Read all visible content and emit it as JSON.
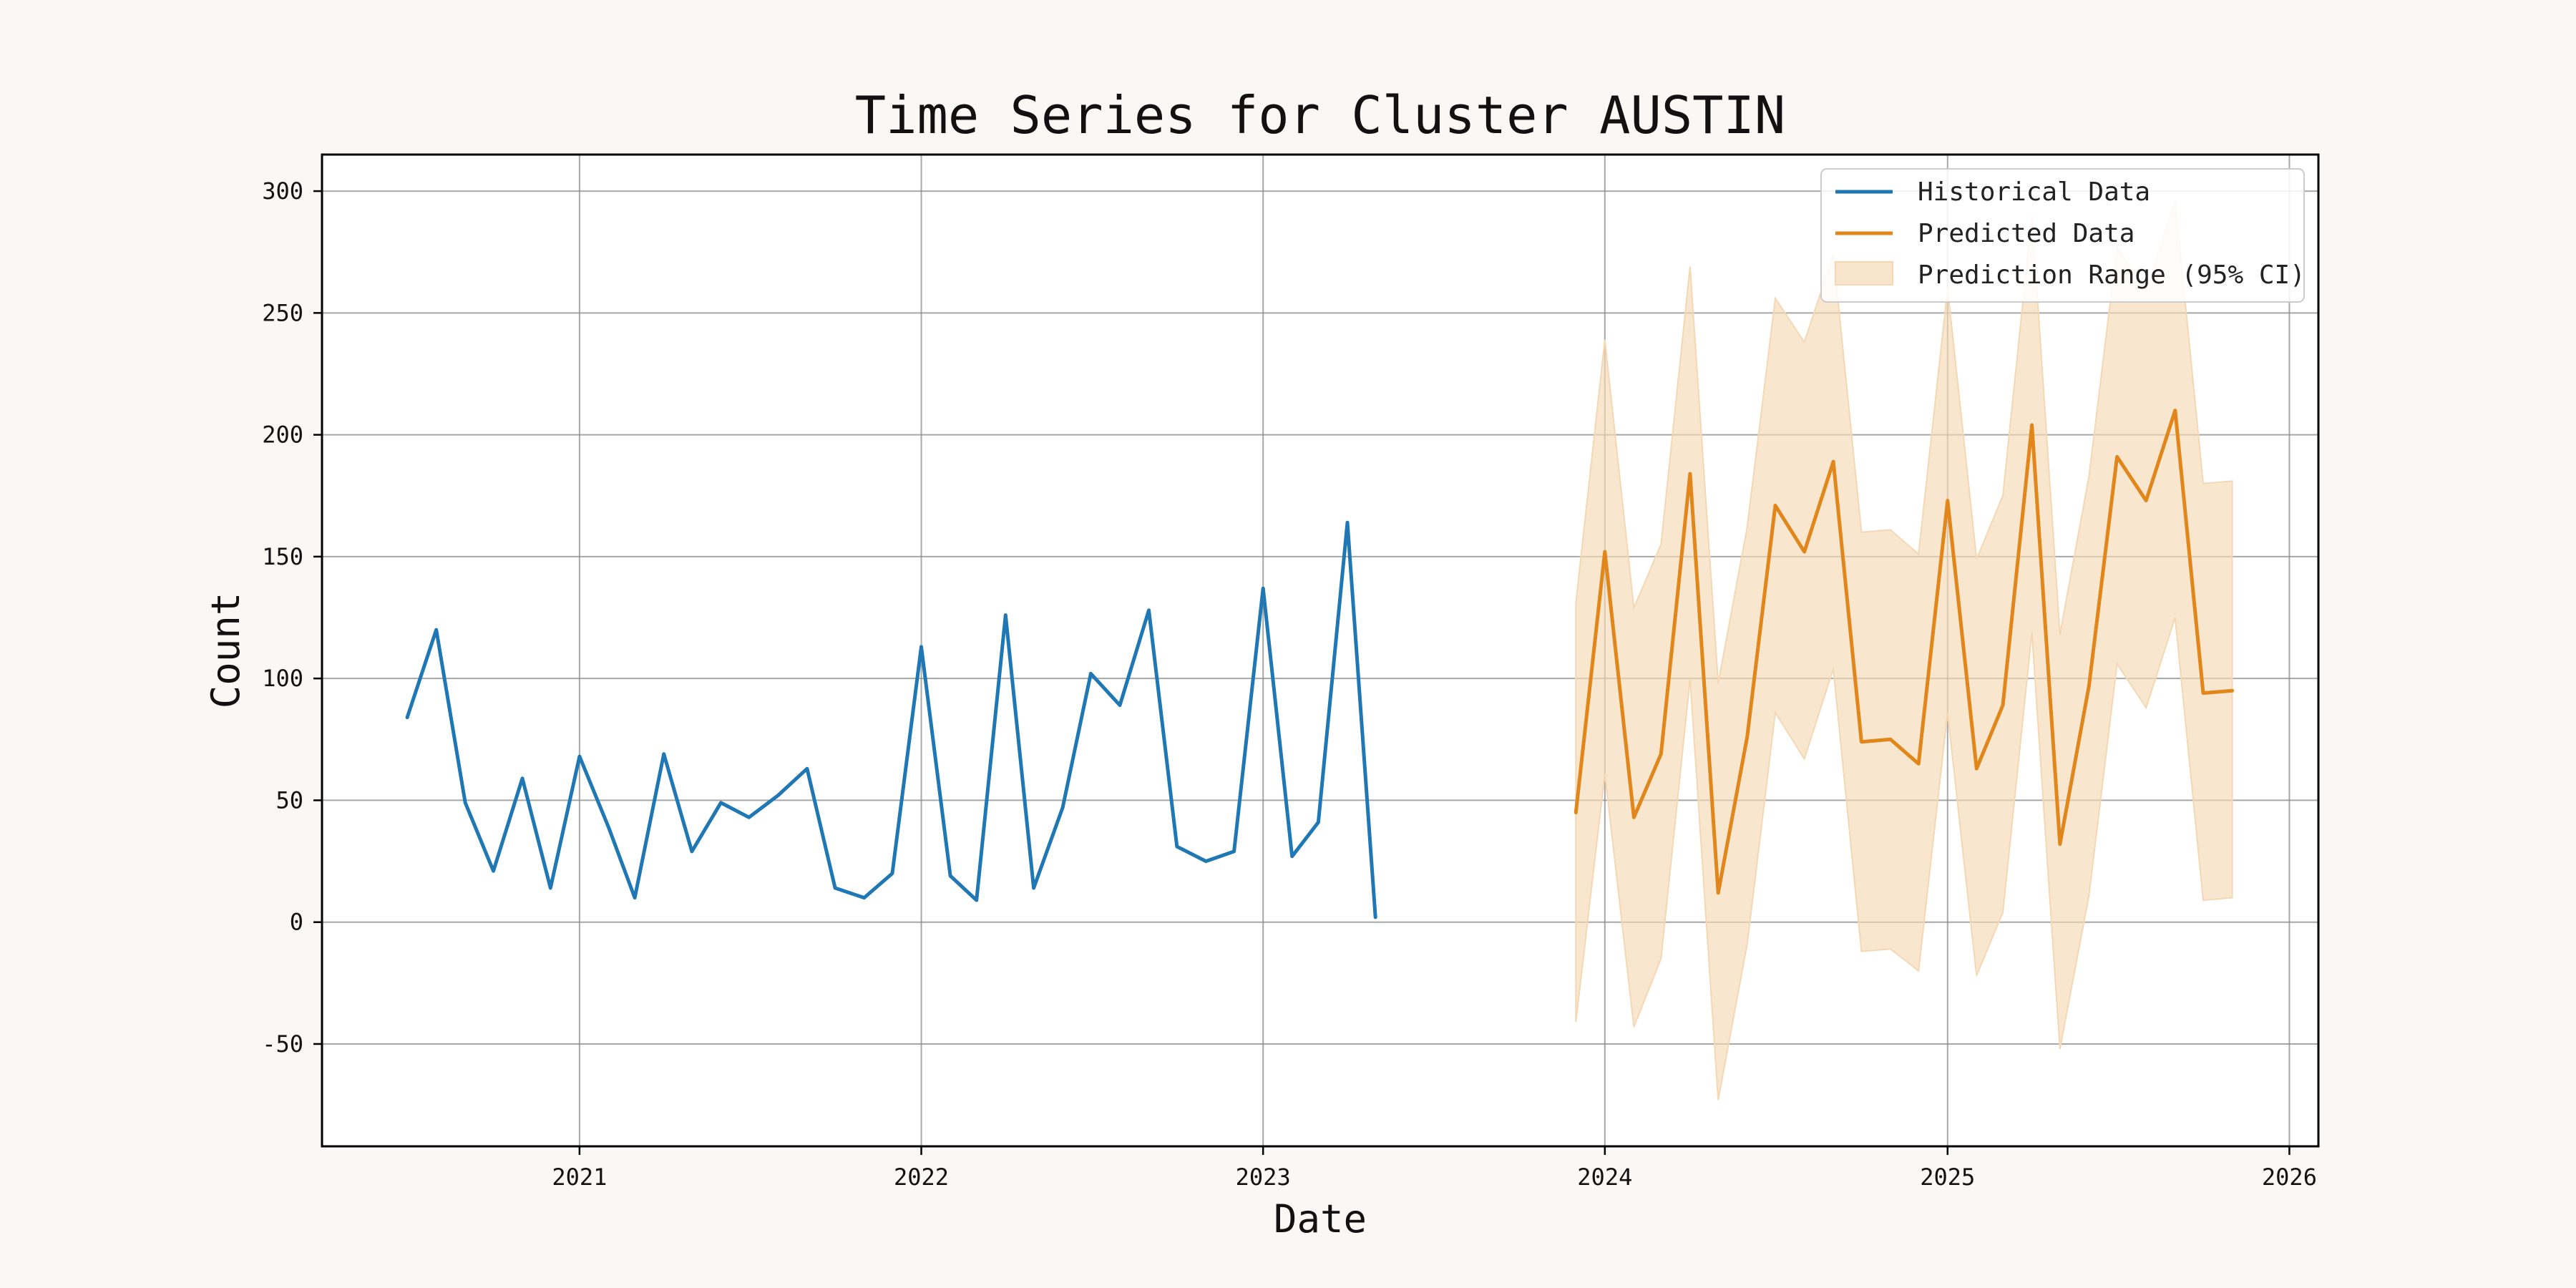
{
  "chart_data": {
    "type": "line",
    "title": "Time Series for Cluster AUSTIN",
    "xlabel": "Date",
    "ylabel": "Count",
    "xlim": [
      "2020-04-01",
      "2026-02-01"
    ],
    "ylim": [
      -92,
      315
    ],
    "x_ticks": [
      "2021-01-01",
      "2022-01-01",
      "2023-01-01",
      "2024-01-01",
      "2025-01-01",
      "2026-01-01"
    ],
    "x_tick_labels": [
      "2021",
      "2022",
      "2023",
      "2024",
      "2025",
      "2026"
    ],
    "y_ticks": [
      -50,
      0,
      50,
      100,
      150,
      200,
      250,
      300
    ],
    "grid": true,
    "legend_position": "top-right",
    "colors": {
      "historical": "#1f77b4",
      "predicted": "#e0861a",
      "band": "#f5d8b3",
      "grid": "#8a8a8a",
      "frame": "#000000"
    },
    "series": [
      {
        "name": "Historical Data",
        "x": [
          "2020-07-01",
          "2020-08-01",
          "2020-09-01",
          "2020-10-01",
          "2020-11-01",
          "2020-12-01",
          "2021-01-01",
          "2021-02-01",
          "2021-03-01",
          "2021-04-01",
          "2021-05-01",
          "2021-06-01",
          "2021-07-01",
          "2021-08-01",
          "2021-09-01",
          "2021-10-01",
          "2021-11-01",
          "2021-12-01",
          "2022-01-01",
          "2022-02-01",
          "2022-03-01",
          "2022-04-01",
          "2022-05-01",
          "2022-06-01",
          "2022-07-01",
          "2022-08-01",
          "2022-09-01",
          "2022-10-01",
          "2022-11-01",
          "2022-12-01",
          "2023-01-01",
          "2023-02-01",
          "2023-03-01",
          "2023-04-01",
          "2023-05-01"
        ],
        "values": [
          84,
          120,
          49,
          21,
          59,
          14,
          68,
          39,
          10,
          69,
          29,
          49,
          43,
          52,
          63,
          14,
          10,
          20,
          113,
          19,
          9,
          126,
          14,
          47,
          102,
          89,
          128,
          31,
          25,
          29,
          137,
          27,
          41,
          164,
          2
        ]
      },
      {
        "name": "Predicted Data",
        "x": [
          "2023-12-01",
          "2024-01-01",
          "2024-02-01",
          "2024-03-01",
          "2024-04-01",
          "2024-05-01",
          "2024-06-01",
          "2024-07-01",
          "2024-08-01",
          "2024-09-01",
          "2024-10-01",
          "2024-11-01",
          "2024-12-01",
          "2025-01-01",
          "2025-02-01",
          "2025-03-01",
          "2025-04-01",
          "2025-05-01",
          "2025-06-01",
          "2025-07-01",
          "2025-08-01",
          "2025-09-01",
          "2025-10-01",
          "2025-11-01"
        ],
        "values": [
          45,
          152,
          43,
          69,
          184,
          12,
          76,
          171,
          152,
          189,
          74,
          75,
          65,
          173,
          63,
          89,
          204,
          32,
          97,
          191,
          173,
          210,
          94,
          95
        ]
      }
    ],
    "band": {
      "name": "Prediction Range (95% CI)",
      "x": [
        "2023-12-01",
        "2024-01-01",
        "2024-02-01",
        "2024-03-01",
        "2024-04-01",
        "2024-05-01",
        "2024-06-01",
        "2024-07-01",
        "2024-08-01",
        "2024-09-01",
        "2024-10-01",
        "2024-11-01",
        "2024-12-01",
        "2025-01-01",
        "2025-02-01",
        "2025-03-01",
        "2025-04-01",
        "2025-05-01",
        "2025-06-01",
        "2025-07-01",
        "2025-08-01",
        "2025-09-01",
        "2025-10-01",
        "2025-11-01"
      ],
      "lower": [
        -41,
        61,
        -43,
        -15,
        100,
        -73,
        -9,
        86,
        67,
        104,
        -12,
        -11,
        -20,
        86,
        -22,
        4,
        119,
        -52,
        11,
        106,
        88,
        125,
        9,
        10
      ],
      "upper": [
        131,
        239,
        129,
        155,
        269,
        98,
        162,
        256,
        238,
        274,
        160,
        161,
        151,
        260,
        149,
        175,
        290,
        118,
        183,
        277,
        259,
        296,
        180,
        181
      ]
    }
  }
}
